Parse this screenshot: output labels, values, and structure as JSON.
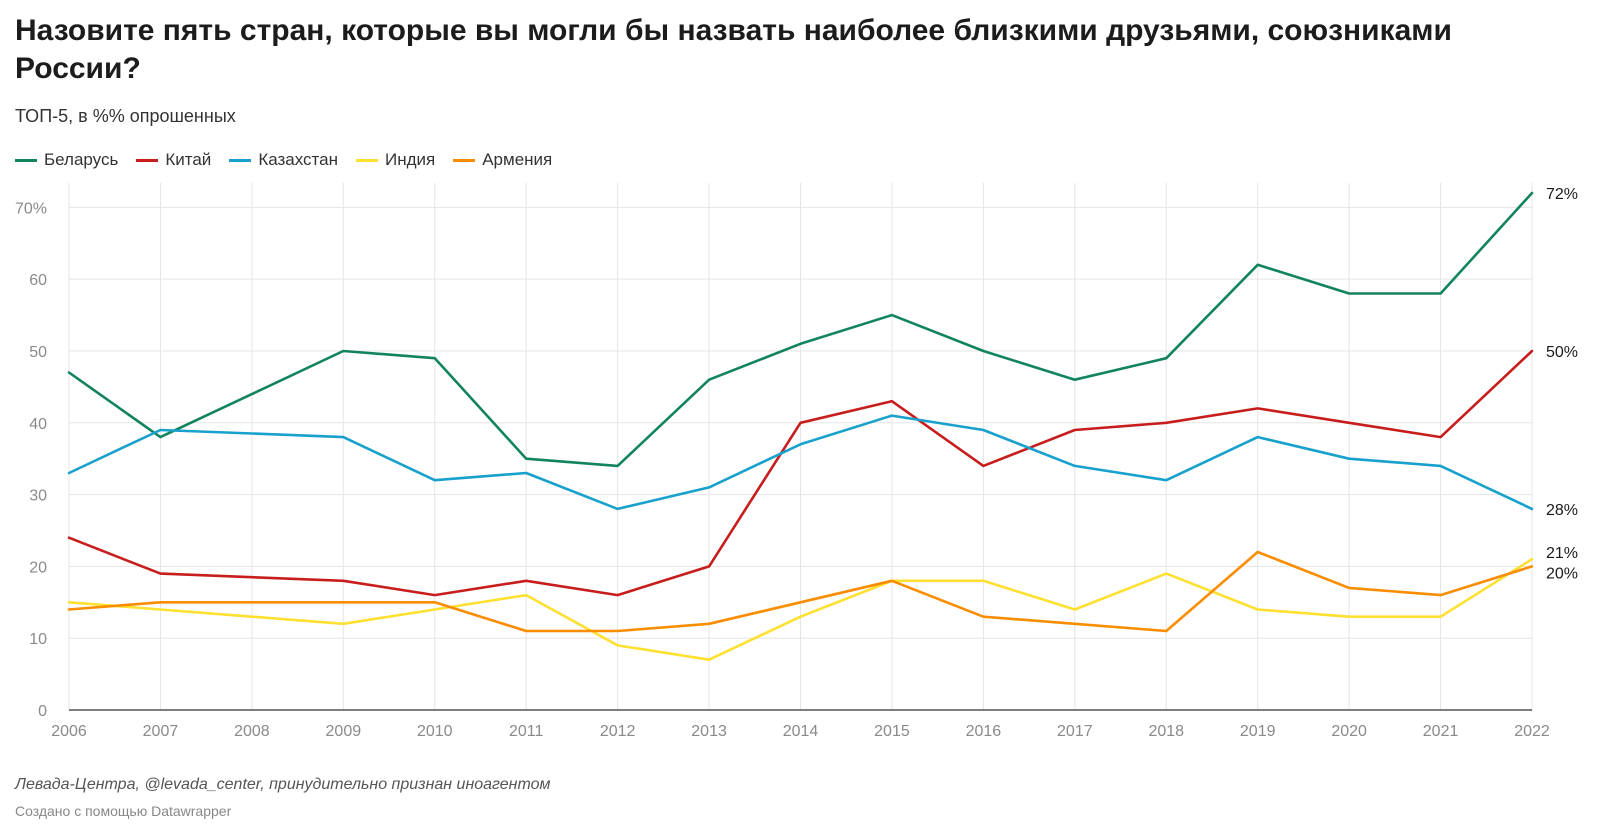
{
  "title": "Назовите пять стран, которые вы могли бы назвать наиболее близкими друзьями, союзниками России?",
  "subtitle": "ТОП-5, в %% опрошенных",
  "source": "Левада-Центра, @levada_center, принудительно признан иноагентом",
  "credit": "Создано с помощью Datawrapper",
  "chart_data": {
    "type": "line",
    "title": "Назовите пять стран, которые вы могли бы назвать наиболее близкими друзьями, союзниками России?",
    "subtitle": "ТОП-5, в %% опрошенных",
    "x": [
      "2006",
      "2007",
      "2008",
      "2009",
      "2010",
      "2011",
      "2012",
      "2013",
      "2014",
      "2015",
      "2016",
      "2017",
      "2018",
      "2019",
      "2020",
      "2021",
      "2022"
    ],
    "ylim": [
      0,
      72
    ],
    "yticks": [
      0,
      10,
      20,
      30,
      40,
      50,
      60,
      70
    ],
    "ytick_labels": [
      "0",
      "10",
      "20",
      "30",
      "40",
      "50",
      "60",
      "70%"
    ],
    "grid": true,
    "legend": "top-left",
    "series": [
      {
        "name": "Беларусь",
        "color": "#12845d",
        "end_label": "72%",
        "values": [
          47,
          38,
          44,
          50,
          49,
          35,
          34,
          46,
          51,
          55,
          50,
          46,
          49,
          62,
          58,
          58,
          72
        ]
      },
      {
        "name": "Китай",
        "color": "#c71e1d",
        "end_label": "50%",
        "values": [
          24,
          19,
          18.5,
          18,
          16,
          18,
          16,
          20,
          40,
          43,
          34,
          39,
          40,
          42,
          40,
          38,
          50
        ]
      },
      {
        "name": "Казахстан",
        "color": "#18a1cd",
        "end_label": "28%",
        "values": [
          33,
          39,
          38.5,
          38,
          32,
          33,
          28,
          31,
          37,
          41,
          39,
          34,
          32,
          38,
          35,
          34,
          28
        ]
      },
      {
        "name": "Индия",
        "color": "#fde030",
        "end_label": "21%",
        "values": [
          15,
          14,
          13,
          12,
          14,
          16,
          9,
          7,
          13,
          18,
          18,
          14,
          19,
          14,
          13,
          13,
          21
        ]
      },
      {
        "name": "Армения",
        "color": "#fa8c00",
        "end_label": "20%",
        "values": [
          14,
          15,
          15,
          15,
          15,
          11,
          11,
          12,
          15,
          18,
          13,
          12,
          11,
          22,
          17,
          16,
          20
        ]
      }
    ]
  }
}
